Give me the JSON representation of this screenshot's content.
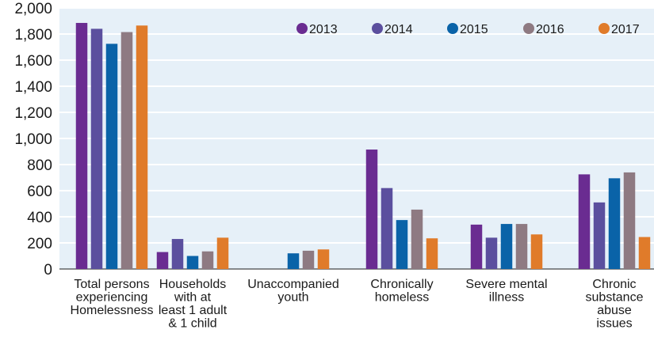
{
  "chart_data": {
    "type": "bar",
    "title": "",
    "xlabel": "",
    "ylabel": "",
    "ylim": [
      0,
      2000
    ],
    "yticks": [
      0,
      200,
      400,
      600,
      800,
      1000,
      1200,
      1400,
      1600,
      1800,
      2000
    ],
    "ytick_labels": [
      "0",
      "200",
      "400",
      "600",
      "800",
      "1,000",
      "1,200",
      "1,400",
      "1,600",
      "1,800",
      "2,000"
    ],
    "grid": true,
    "legend": "top-right",
    "categories": [
      [
        "Total persons",
        "experiencing",
        "Homelessness"
      ],
      [
        "Households",
        "with at",
        "least 1 adult",
        "& 1 child"
      ],
      [
        "Unaccompanied",
        "youth"
      ],
      [
        "Chronically",
        "homeless"
      ],
      [
        "Severe mental",
        "illness"
      ],
      [
        "Chronic",
        "substance",
        "abuse",
        "issues"
      ]
    ],
    "series": [
      {
        "name": "2013",
        "color": "#6a2c91",
        "values": [
          1885,
          130,
          0,
          915,
          340,
          725
        ]
      },
      {
        "name": "2014",
        "color": "#5b4f9e",
        "values": [
          1840,
          230,
          0,
          620,
          240,
          510
        ]
      },
      {
        "name": "2015",
        "color": "#0a63a8",
        "values": [
          1725,
          100,
          120,
          375,
          345,
          695
        ]
      },
      {
        "name": "2016",
        "color": "#8e7a82",
        "values": [
          1815,
          135,
          140,
          455,
          345,
          740
        ]
      },
      {
        "name": "2017",
        "color": "#e07b2a",
        "values": [
          1865,
          240,
          150,
          235,
          265,
          245
        ]
      }
    ]
  }
}
